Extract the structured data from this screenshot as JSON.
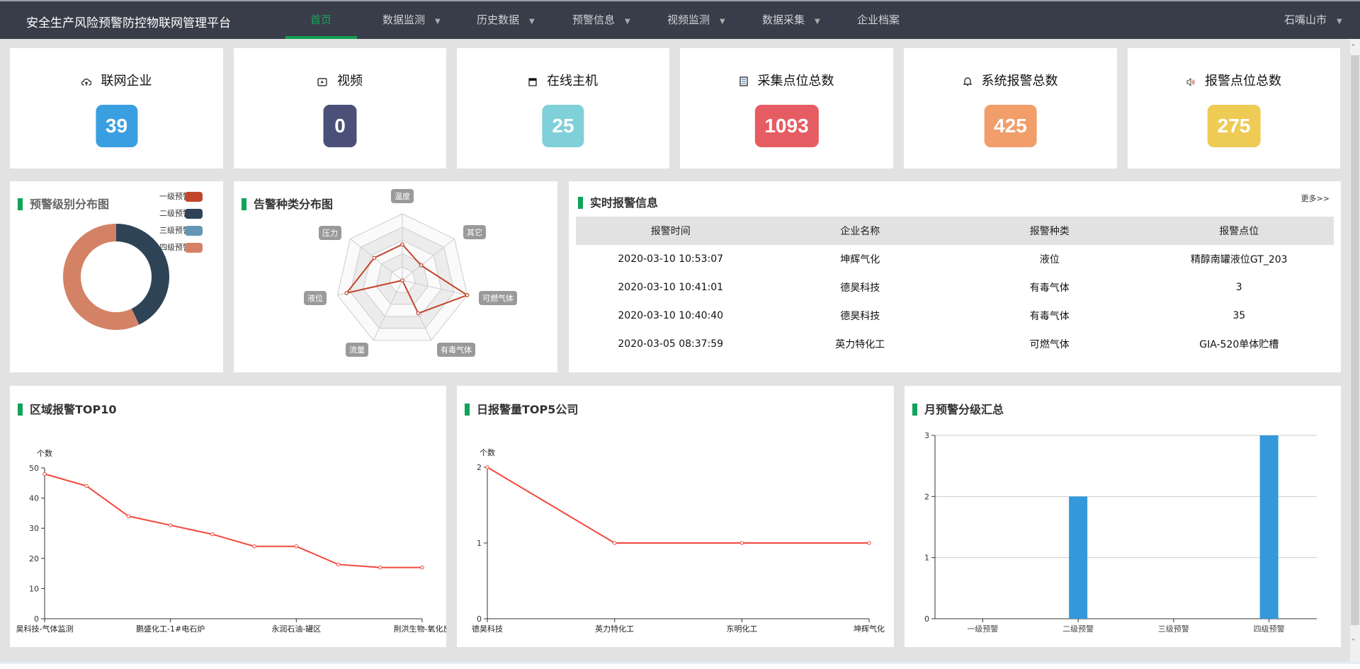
{
  "header": {
    "title": "安全生产风险预警防控物联网管理平台",
    "nav": [
      {
        "label": "首页",
        "dropdown": false,
        "active": true
      },
      {
        "label": "数据监测",
        "dropdown": true
      },
      {
        "label": "历史数据",
        "dropdown": true
      },
      {
        "label": "预警信息",
        "dropdown": true
      },
      {
        "label": "视频监测",
        "dropdown": true
      },
      {
        "label": "数据采集",
        "dropdown": true
      },
      {
        "label": "企业档案",
        "dropdown": false
      }
    ],
    "region": "石嘴山市",
    "accent": "#10a050"
  },
  "stats": [
    {
      "label": "联网企业",
      "value": "39",
      "icon": "cloud-upload-icon",
      "color": "#3a9fe0"
    },
    {
      "label": "视频",
      "value": "0",
      "icon": "video-icon",
      "color": "#4a5078"
    },
    {
      "label": "在线主机",
      "value": "25",
      "icon": "window-icon",
      "color": "#7fd0d8"
    },
    {
      "label": "采集点位总数",
      "value": "1093",
      "icon": "clipboard-icon",
      "color": "#e55d62"
    },
    {
      "label": "系统报警总数",
      "value": "425",
      "icon": "bell-icon",
      "color": "#f19e6a"
    },
    {
      "label": "报警点位总数",
      "value": "275",
      "icon": "speaker-icon",
      "color": "#eecb55"
    }
  ],
  "donut": {
    "title": "预警级别分布图",
    "chart_data": {
      "type": "pie",
      "legend": "top-right",
      "categories": [
        "一级预警",
        "二级预警",
        "三级预警",
        "四级预警"
      ],
      "values": [
        0,
        3,
        0,
        4
      ],
      "colors": [
        "#c1462c",
        "#2e4355",
        "#6497b6",
        "#d48265"
      ]
    }
  },
  "radar": {
    "title": "告警种类分布图",
    "chart_data": {
      "type": "radar",
      "indicators": [
        "温度",
        "其它",
        "可燃气体",
        "有毒气体",
        "流量",
        "液位",
        "压力"
      ],
      "values_fraction_of_max": [
        0.54,
        0.36,
        1.0,
        0.55,
        0.0,
        0.86,
        0.54
      ],
      "color": "#c1462c"
    }
  },
  "alarms": {
    "title": "实时报警信息",
    "more": "更多>>",
    "columns": [
      "报警时间",
      "企业名称",
      "报警种类",
      "报警点位"
    ],
    "rows": [
      [
        "2020-03-10 10:53:07",
        "坤辉气化",
        "液位",
        "精醇南罐液位GT_203"
      ],
      [
        "2020-03-10 10:41:01",
        "德昊科技",
        "有毒气体",
        "3"
      ],
      [
        "2020-03-10 10:40:40",
        "德昊科技",
        "有毒气体",
        "35"
      ],
      [
        "2020-03-05 08:37:59",
        "英力特化工",
        "可燃气体",
        "GIA-520单体贮槽"
      ]
    ]
  },
  "region_top10": {
    "title": "区域报警TOP10",
    "chart_data": {
      "type": "line",
      "ylabel": "个数",
      "ylim": [
        0,
        50
      ],
      "yticks": [
        0,
        10,
        20,
        30,
        40,
        50
      ],
      "categories": [
        "昊科技-气体监测",
        "",
        "",
        "鹏盛化工-1#电石炉",
        "",
        "",
        "永润石油-罐区",
        "",
        "",
        "荆洪生物-氧化反"
      ],
      "values": [
        48,
        44,
        34,
        31,
        28,
        24,
        24,
        18,
        17,
        17
      ],
      "color": "#f4483f"
    }
  },
  "daily_top5": {
    "title": "日报警量TOP5公司",
    "chart_data": {
      "type": "line",
      "ylabel": "个数",
      "ylim": [
        0,
        2
      ],
      "yticks": [
        0,
        1,
        2
      ],
      "categories": [
        "德昊科技",
        "英力特化工",
        "东明化工",
        "坤辉气化"
      ],
      "values": [
        2,
        1,
        1,
        1
      ],
      "color": "#f4483f"
    }
  },
  "monthly": {
    "title": "月预警分级汇总",
    "chart_data": {
      "type": "bar",
      "ylim": [
        0,
        3
      ],
      "yticks": [
        0,
        1,
        2,
        3
      ],
      "grid": true,
      "categories": [
        "一级预警",
        "二级预警",
        "三级预警",
        "四级预警"
      ],
      "values": [
        0,
        2,
        0,
        3
      ],
      "color": "#3498db"
    }
  }
}
